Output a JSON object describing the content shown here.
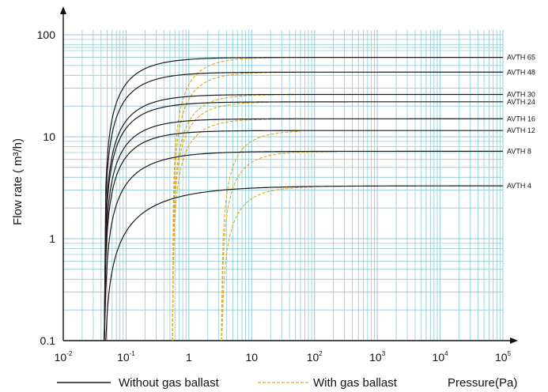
{
  "chart_data": {
    "type": "line",
    "xscale": "log",
    "yscale": "log",
    "xlim": [
      0.01,
      100000
    ],
    "ylim": [
      0.1,
      100
    ],
    "grid": true,
    "grid_color": "#8fcbd6",
    "ylabel": "Flow rate ( m³/h)",
    "xlabel": "Pressure(Pa)",
    "x_ticks": [
      {
        "base": "10",
        "exp": "-2"
      },
      {
        "base": "10",
        "exp": "-1"
      },
      {
        "base": "1",
        "exp": ""
      },
      {
        "base": "10",
        "exp": ""
      },
      {
        "base": "10",
        "exp": "2"
      },
      {
        "base": "10",
        "exp": "3"
      },
      {
        "base": "10",
        "exp": "4"
      },
      {
        "base": "10",
        "exp": "5"
      }
    ],
    "x_tick_values": [
      0.01,
      0.1,
      1,
      10,
      100,
      1000,
      10000,
      100000
    ],
    "y_ticks": [
      "0.1",
      "1",
      "10",
      "100"
    ],
    "y_tick_values": [
      0.1,
      1,
      10,
      100
    ],
    "legend": {
      "position": "bottom",
      "solid_label": "Without gas ballast",
      "dashed_label": "With gas ballast",
      "solid_color": "#1a1a1a",
      "dashed_color": "#e0a820"
    },
    "start_point": [
      0.045,
      0.1
    ],
    "series": [
      {
        "name": "AVTH 65",
        "max": 60,
        "k": 1.0
      },
      {
        "name": "AVTH 48",
        "max": 43,
        "k": 1.0
      },
      {
        "name": "AVTH 30",
        "max": 26,
        "k": 1.0
      },
      {
        "name": "AVTH 24",
        "max": 22,
        "k": 1.0
      },
      {
        "name": "AVTH 16",
        "max": 15,
        "k": 1.0
      },
      {
        "name": "AVTH 12",
        "max": 11.5,
        "k": 1.0
      },
      {
        "name": "AVTH 8",
        "max": 7.2,
        "k": 0.8
      },
      {
        "name": "AVTH 4",
        "max": 3.3,
        "k": 0.55
      }
    ],
    "ballast_series": [
      {
        "name": "AVTH 65",
        "start_x": 0.55,
        "join_x": 90
      },
      {
        "name": "AVTH 48",
        "start_x": 0.55,
        "join_x": 70
      },
      {
        "name": "AVTH 30",
        "start_x": 0.55,
        "join_x": 80
      },
      {
        "name": "AVTH 24",
        "start_x": 0.55,
        "join_x": 70
      },
      {
        "name": "AVTH 16",
        "start_x": 0.55,
        "join_x": 70
      },
      {
        "name": "AVTH 12",
        "start_x": 3.3,
        "join_x": 60
      },
      {
        "name": "AVTH 8",
        "start_x": 3.3,
        "join_x": 170
      },
      {
        "name": "AVTH 4",
        "start_x": 3.3,
        "join_x": 100
      }
    ]
  }
}
